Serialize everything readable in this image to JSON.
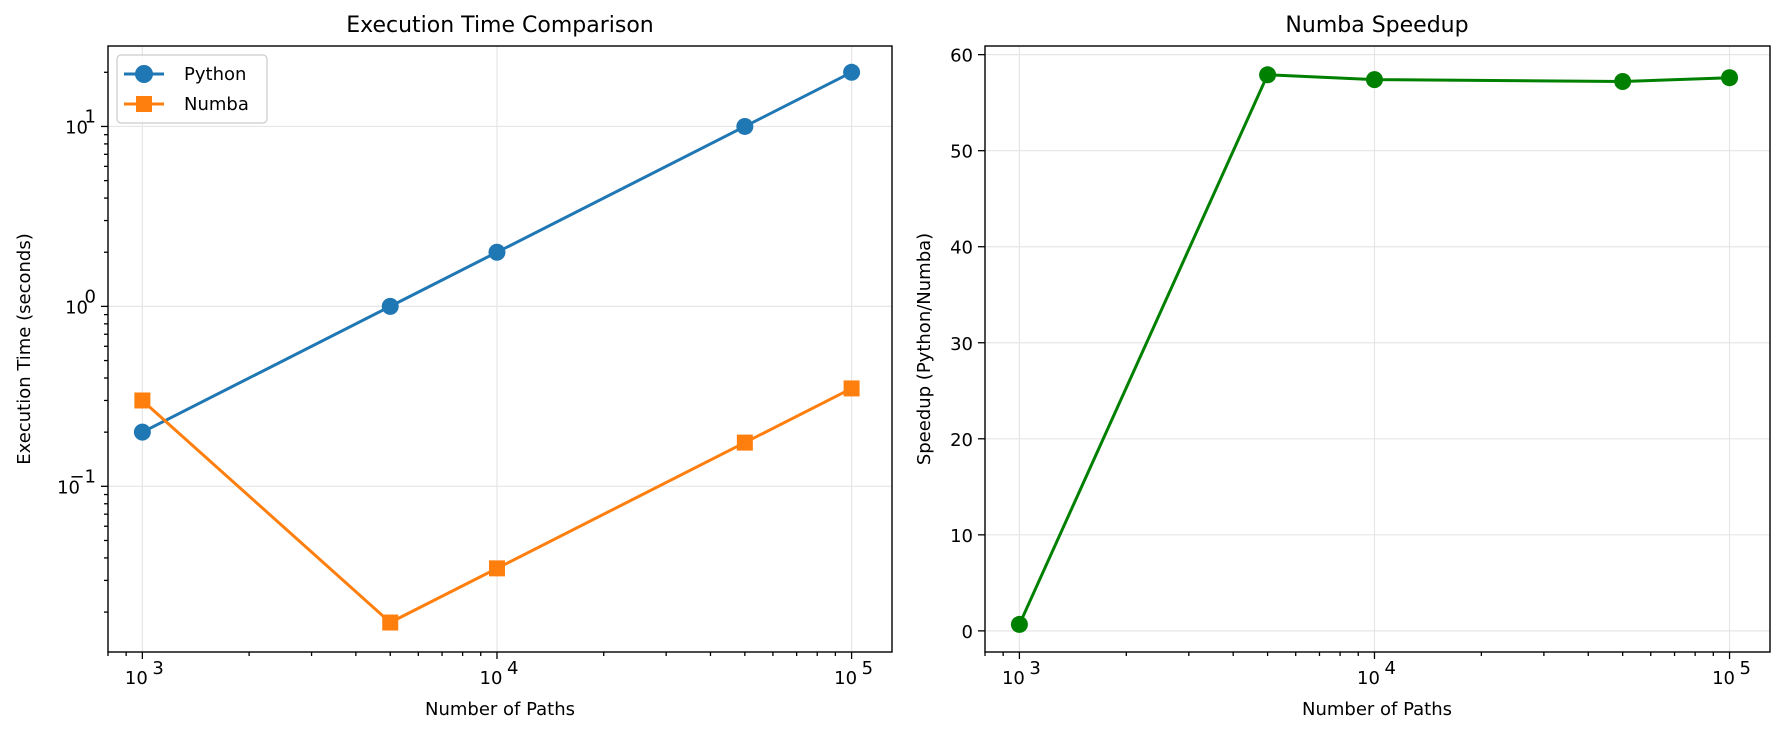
{
  "chart_data": [
    {
      "type": "line",
      "title": "Execution Time Comparison",
      "xlabel": "Number of Paths",
      "ylabel": "Execution Time (seconds)",
      "xscale": "log",
      "yscale": "log",
      "xlim": [
        800,
        130000
      ],
      "ylim": [
        0.012,
        28
      ],
      "xticks": [
        {
          "value": 1000,
          "label": "10",
          "exp": "3"
        },
        {
          "value": 10000,
          "label": "10",
          "exp": "4"
        },
        {
          "value": 100000,
          "label": "10",
          "exp": "5"
        }
      ],
      "yticks": [
        {
          "value": 0.1,
          "label": "10",
          "exp": "−1"
        },
        {
          "value": 1,
          "label": "10",
          "exp": "0"
        },
        {
          "value": 10,
          "label": "10",
          "exp": "1"
        }
      ],
      "grid": true,
      "legend_position": "upper-left",
      "x": [
        1000,
        5000,
        10000,
        50000,
        100000
      ],
      "series": [
        {
          "name": "Python",
          "color": "#1f77b4",
          "marker": "circle",
          "values": [
            0.2,
            1.0,
            2.0,
            10.0,
            20.0
          ]
        },
        {
          "name": "Numba",
          "color": "#ff7f0e",
          "marker": "square",
          "values": [
            0.3,
            0.0175,
            0.035,
            0.175,
            0.35
          ]
        }
      ]
    },
    {
      "type": "line",
      "title": "Numba Speedup",
      "xlabel": "Number of Paths",
      "ylabel": "Speedup (Python/Numba)",
      "xscale": "log",
      "yscale": "linear",
      "xlim": [
        800,
        130000
      ],
      "ylim": [
        -2.2,
        60.9
      ],
      "xticks": [
        {
          "value": 1000,
          "label": "10",
          "exp": "3"
        },
        {
          "value": 10000,
          "label": "10",
          "exp": "4"
        },
        {
          "value": 100000,
          "label": "10",
          "exp": "5"
        }
      ],
      "yticks": [
        {
          "value": 0,
          "label": "0"
        },
        {
          "value": 10,
          "label": "10"
        },
        {
          "value": 20,
          "label": "20"
        },
        {
          "value": 30,
          "label": "30"
        },
        {
          "value": 40,
          "label": "40"
        },
        {
          "value": 50,
          "label": "50"
        },
        {
          "value": 60,
          "label": "60"
        }
      ],
      "grid": true,
      "x": [
        1000,
        5000,
        10000,
        50000,
        100000
      ],
      "series": [
        {
          "color": "#008000",
          "marker": "circle",
          "values": [
            0.67,
            57.9,
            57.4,
            57.2,
            57.6
          ]
        }
      ]
    }
  ]
}
